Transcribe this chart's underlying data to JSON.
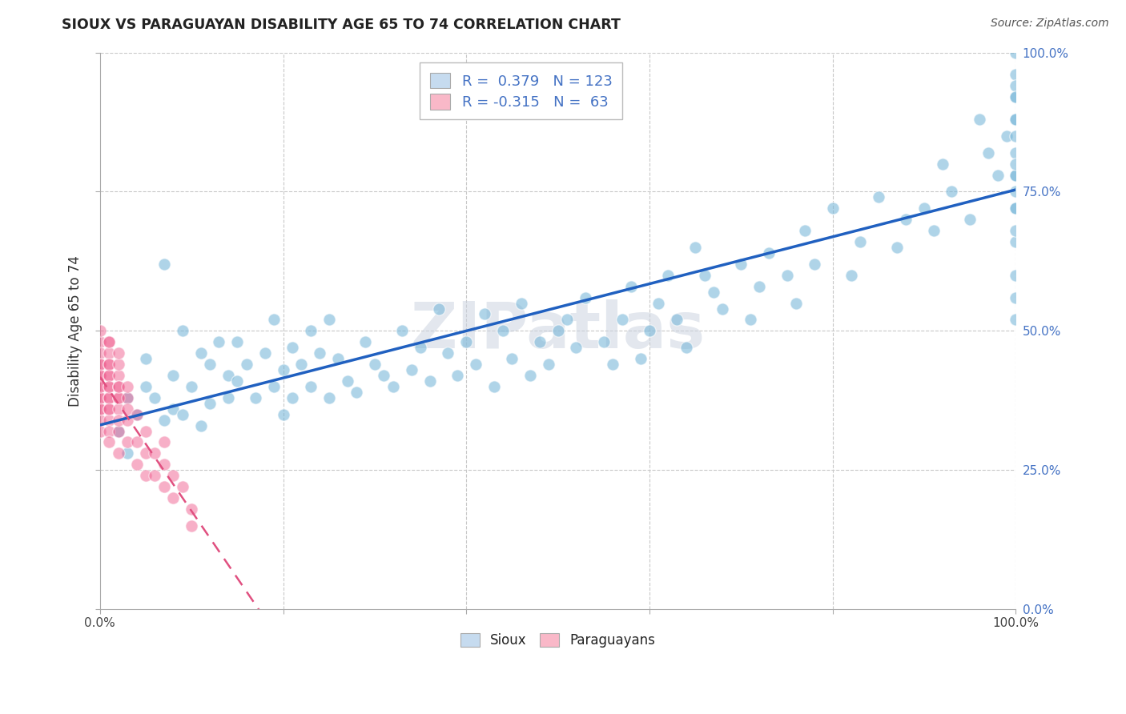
{
  "title": "SIOUX VS PARAGUAYAN DISABILITY AGE 65 TO 74 CORRELATION CHART",
  "source_text": "Source: ZipAtlas.com",
  "ylabel": "Disability Age 65 to 74",
  "sioux_R": 0.379,
  "sioux_N": 123,
  "paraguayan_R": -0.315,
  "paraguayan_N": 63,
  "sioux_color": "#7ab8d9",
  "sioux_color_light": "#c6dbef",
  "paraguayan_color": "#f06090",
  "paraguayan_color_light": "#f9b8c8",
  "trendline_sioux": "#2060c0",
  "trendline_para": "#e05080",
  "background_color": "#ffffff",
  "grid_color": "#c8c8c8",
  "watermark": "ZIPatlas",
  "watermark_color": "#ccd4e0",
  "xlim": [
    0.0,
    1.0
  ],
  "ylim": [
    0.0,
    1.0
  ],
  "xticks": [
    0.0,
    0.2,
    0.4,
    0.6,
    0.8,
    1.0
  ],
  "xticklabels": [
    "0.0%",
    "",
    "",
    "",
    "",
    "100.0%"
  ],
  "yticks_right": [
    0.0,
    0.25,
    0.5,
    0.75,
    1.0
  ],
  "yticklabels_right": [
    "0.0%",
    "25.0%",
    "50.0%",
    "75.0%",
    "100.0%"
  ],
  "sioux_x": [
    0.02,
    0.03,
    0.03,
    0.04,
    0.05,
    0.05,
    0.06,
    0.07,
    0.07,
    0.08,
    0.08,
    0.09,
    0.09,
    0.1,
    0.11,
    0.11,
    0.12,
    0.12,
    0.13,
    0.14,
    0.14,
    0.15,
    0.15,
    0.16,
    0.17,
    0.18,
    0.19,
    0.19,
    0.2,
    0.2,
    0.21,
    0.21,
    0.22,
    0.23,
    0.23,
    0.24,
    0.25,
    0.25,
    0.26,
    0.27,
    0.28,
    0.29,
    0.3,
    0.31,
    0.32,
    0.33,
    0.34,
    0.35,
    0.36,
    0.37,
    0.38,
    0.39,
    0.4,
    0.41,
    0.42,
    0.43,
    0.44,
    0.45,
    0.46,
    0.47,
    0.48,
    0.49,
    0.5,
    0.51,
    0.52,
    0.53,
    0.55,
    0.56,
    0.57,
    0.58,
    0.59,
    0.6,
    0.61,
    0.62,
    0.63,
    0.64,
    0.65,
    0.66,
    0.67,
    0.68,
    0.7,
    0.71,
    0.72,
    0.73,
    0.75,
    0.76,
    0.77,
    0.78,
    0.8,
    0.82,
    0.83,
    0.85,
    0.87,
    0.88,
    0.9,
    0.91,
    0.92,
    0.93,
    0.95,
    0.96,
    0.97,
    0.98,
    0.99,
    1.0,
    1.0,
    1.0,
    1.0,
    1.0,
    1.0,
    1.0,
    1.0,
    1.0,
    1.0,
    1.0,
    1.0,
    1.0,
    1.0,
    1.0,
    1.0,
    1.0,
    1.0,
    1.0,
    1.0
  ],
  "sioux_y": [
    0.32,
    0.28,
    0.38,
    0.35,
    0.4,
    0.45,
    0.38,
    0.62,
    0.34,
    0.42,
    0.36,
    0.35,
    0.5,
    0.4,
    0.46,
    0.33,
    0.44,
    0.37,
    0.48,
    0.38,
    0.42,
    0.41,
    0.48,
    0.44,
    0.38,
    0.46,
    0.4,
    0.52,
    0.43,
    0.35,
    0.47,
    0.38,
    0.44,
    0.4,
    0.5,
    0.46,
    0.38,
    0.52,
    0.45,
    0.41,
    0.39,
    0.48,
    0.44,
    0.42,
    0.4,
    0.5,
    0.43,
    0.47,
    0.41,
    0.54,
    0.46,
    0.42,
    0.48,
    0.44,
    0.53,
    0.4,
    0.5,
    0.45,
    0.55,
    0.42,
    0.48,
    0.44,
    0.5,
    0.52,
    0.47,
    0.56,
    0.48,
    0.44,
    0.52,
    0.58,
    0.45,
    0.5,
    0.55,
    0.6,
    0.52,
    0.47,
    0.65,
    0.6,
    0.57,
    0.54,
    0.62,
    0.52,
    0.58,
    0.64,
    0.6,
    0.55,
    0.68,
    0.62,
    0.72,
    0.6,
    0.66,
    0.74,
    0.65,
    0.7,
    0.72,
    0.68,
    0.8,
    0.75,
    0.7,
    0.88,
    0.82,
    0.78,
    0.85,
    0.92,
    0.88,
    0.96,
    1.0,
    0.94,
    0.88,
    0.82,
    0.78,
    0.72,
    0.66,
    0.6,
    0.56,
    0.52,
    0.78,
    0.85,
    0.72,
    0.92,
    0.68,
    0.8,
    0.75
  ],
  "paraguayan_x": [
    0.0,
    0.0,
    0.0,
    0.0,
    0.0,
    0.0,
    0.0,
    0.0,
    0.0,
    0.0,
    0.0,
    0.0,
    0.0,
    0.0,
    0.0,
    0.01,
    0.01,
    0.01,
    0.01,
    0.01,
    0.01,
    0.01,
    0.01,
    0.01,
    0.01,
    0.01,
    0.01,
    0.01,
    0.01,
    0.01,
    0.01,
    0.02,
    0.02,
    0.02,
    0.02,
    0.02,
    0.02,
    0.02,
    0.02,
    0.02,
    0.02,
    0.02,
    0.03,
    0.03,
    0.03,
    0.03,
    0.03,
    0.04,
    0.04,
    0.04,
    0.05,
    0.05,
    0.05,
    0.06,
    0.06,
    0.07,
    0.07,
    0.07,
    0.08,
    0.08,
    0.09,
    0.1,
    0.1
  ],
  "paraguayan_y": [
    0.44,
    0.4,
    0.48,
    0.36,
    0.42,
    0.38,
    0.34,
    0.46,
    0.42,
    0.38,
    0.44,
    0.4,
    0.36,
    0.32,
    0.5,
    0.44,
    0.4,
    0.36,
    0.48,
    0.42,
    0.38,
    0.34,
    0.46,
    0.42,
    0.38,
    0.44,
    0.4,
    0.36,
    0.32,
    0.48,
    0.3,
    0.42,
    0.38,
    0.44,
    0.4,
    0.36,
    0.32,
    0.46,
    0.38,
    0.34,
    0.4,
    0.28,
    0.38,
    0.34,
    0.4,
    0.3,
    0.36,
    0.35,
    0.3,
    0.26,
    0.32,
    0.28,
    0.24,
    0.28,
    0.24,
    0.26,
    0.22,
    0.3,
    0.24,
    0.2,
    0.22,
    0.18,
    0.15
  ]
}
